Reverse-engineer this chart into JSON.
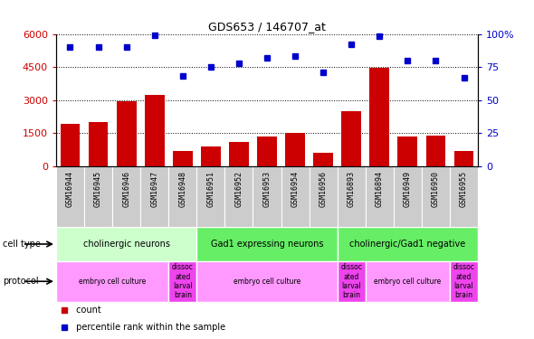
{
  "title": "GDS653 / 146707_at",
  "samples": [
    "GSM16944",
    "GSM16945",
    "GSM16946",
    "GSM16947",
    "GSM16948",
    "GSM16951",
    "GSM16952",
    "GSM16953",
    "GSM16954",
    "GSM16956",
    "GSM16893",
    "GSM16894",
    "GSM16949",
    "GSM16950",
    "GSM16955"
  ],
  "counts": [
    1900,
    2000,
    2950,
    3250,
    700,
    900,
    1100,
    1350,
    1500,
    600,
    2500,
    4450,
    1350,
    1400,
    700
  ],
  "percentiles": [
    90,
    90,
    90,
    99,
    68,
    75,
    78,
    82,
    83,
    71,
    92,
    98,
    80,
    80,
    67
  ],
  "bar_color": "#cc0000",
  "dot_color": "#0000cc",
  "ylim_left": [
    0,
    6000
  ],
  "ylim_right": [
    0,
    100
  ],
  "yticks_left": [
    0,
    1500,
    3000,
    4500,
    6000
  ],
  "yticks_right": [
    0,
    25,
    50,
    75,
    100
  ],
  "bg_color": "#ffffff",
  "tick_label_color": "#cc0000",
  "right_tick_color": "#0000cc",
  "xtick_bg": "#cccccc",
  "cell_groups": [
    {
      "label": "cholinergic neurons",
      "start": 0,
      "end": 5,
      "color": "#ccffcc"
    },
    {
      "label": "Gad1 expressing neurons",
      "start": 5,
      "end": 10,
      "color": "#66ee66"
    },
    {
      "label": "cholinergic/Gad1 negative",
      "start": 10,
      "end": 15,
      "color": "#66ee66"
    }
  ],
  "prot_groups": [
    {
      "label": "embryo cell culture",
      "start": 0,
      "end": 4,
      "color": "#ff99ff"
    },
    {
      "label": "dissoc\nated\nlarval\nbrain",
      "start": 4,
      "end": 5,
      "color": "#ee44ee"
    },
    {
      "label": "embryo cell culture",
      "start": 5,
      "end": 10,
      "color": "#ff99ff"
    },
    {
      "label": "dissoc\nated\nlarval\nbrain",
      "start": 10,
      "end": 11,
      "color": "#ee44ee"
    },
    {
      "label": "embryo cell culture",
      "start": 11,
      "end": 14,
      "color": "#ff99ff"
    },
    {
      "label": "dissoc\nated\nlarval\nbrain",
      "start": 14,
      "end": 15,
      "color": "#ee44ee"
    }
  ]
}
